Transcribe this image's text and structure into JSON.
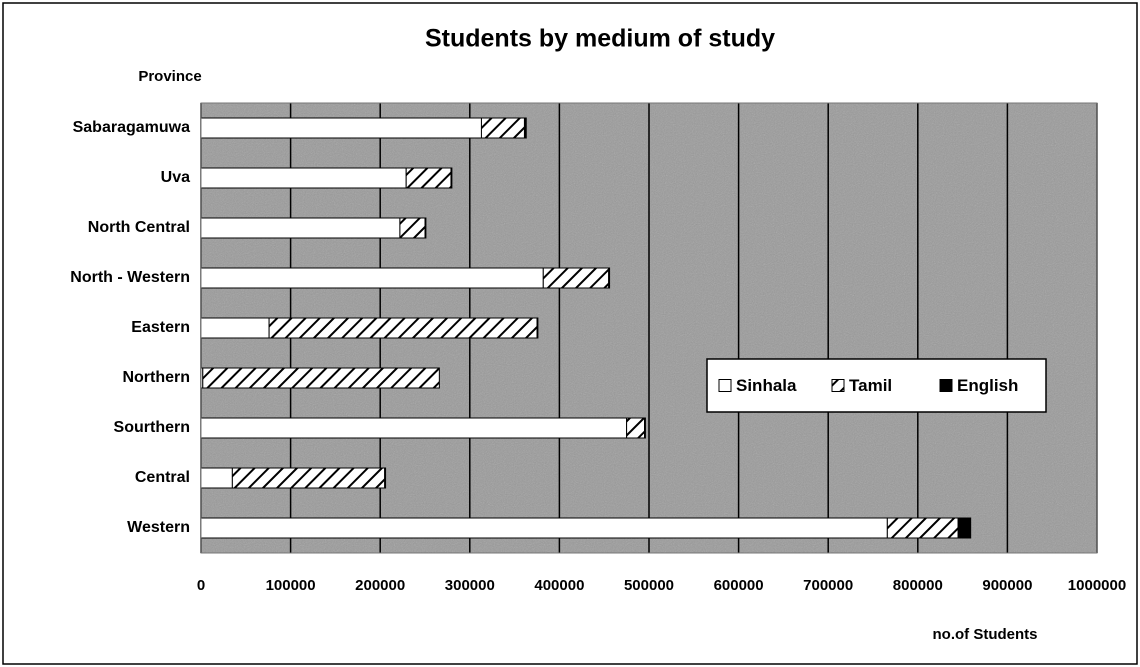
{
  "chart_data": {
    "type": "stacked-bar-horizontal",
    "title": "Students by medium of study",
    "y_label": "Province",
    "x_label": "no.of Students",
    "categories": [
      "Sabaragamuwa",
      "Uva",
      "North Central",
      "North - Western",
      "Eastern",
      "Northern",
      "Sourthern",
      "Central",
      "Western"
    ],
    "series": [
      {
        "name": "Sinhala",
        "color": "#ffffff",
        "pattern": "solid",
        "values": [
          313000,
          229000,
          222000,
          382000,
          76000,
          2000,
          475000,
          35000,
          766000
        ]
      },
      {
        "name": "Tamil",
        "color": "#ffffff",
        "pattern": "hatch",
        "values": [
          48000,
          50000,
          28000,
          73000,
          299000,
          264000,
          20000,
          170000,
          79000
        ]
      },
      {
        "name": "English",
        "color": "#000000",
        "pattern": "solid",
        "values": [
          2000,
          1000,
          1000,
          1000,
          1000,
          0,
          1000,
          1000,
          14000
        ]
      }
    ],
    "xlim": [
      0,
      1000000
    ],
    "xticks": [
      0,
      100000,
      200000,
      300000,
      400000,
      500000,
      600000,
      700000,
      800000,
      900000,
      1000000
    ],
    "grid": true,
    "legend": "right"
  }
}
